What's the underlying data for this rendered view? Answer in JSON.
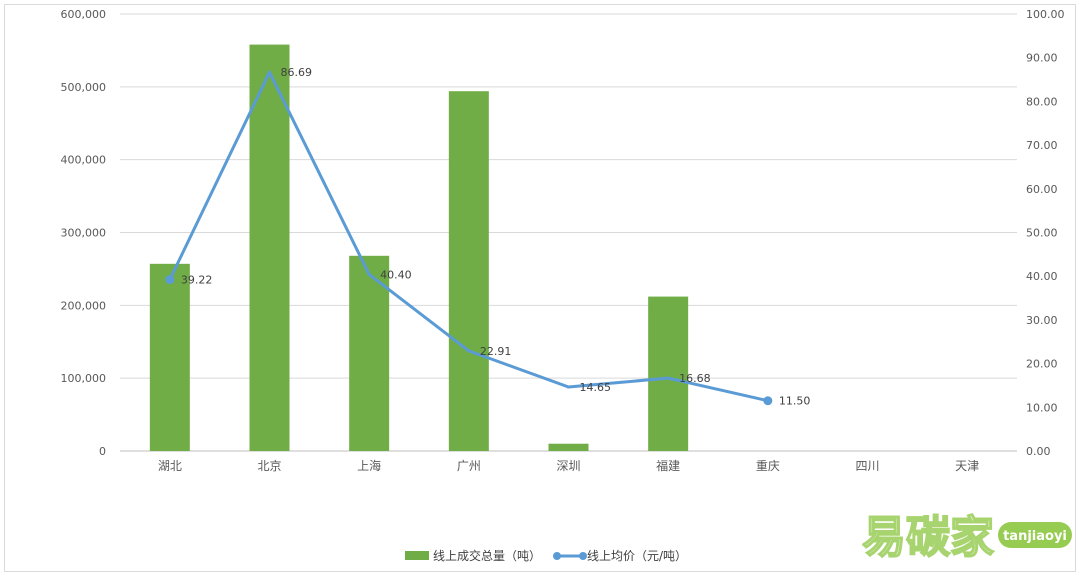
{
  "chart_data": {
    "type": "bar",
    "categories": [
      "湖北",
      "北京",
      "上海",
      "广州",
      "深圳",
      "福建",
      "重庆",
      "四川",
      "天津"
    ],
    "series": [
      {
        "name": "线上成交总量（吨）",
        "type": "bar",
        "axis": "left",
        "color": "#70AD47",
        "values": [
          257000,
          558000,
          268000,
          494000,
          10000,
          212000,
          null,
          null,
          null
        ]
      },
      {
        "name": "线上均价（元/吨）",
        "type": "line",
        "axis": "right",
        "color": "#5B9BD5",
        "values": [
          39.22,
          86.69,
          40.4,
          22.91,
          14.65,
          16.68,
          11.5,
          null,
          null
        ],
        "data_labels": [
          "39.22",
          "86.69",
          "40.40",
          "22.91",
          "14.65",
          "16.68",
          "11.50"
        ]
      }
    ],
    "y_left": {
      "ylim": [
        0,
        600000
      ],
      "ticks": [
        0,
        100000,
        200000,
        300000,
        400000,
        500000,
        600000
      ],
      "tick_labels": [
        "0",
        "100,000",
        "200,000",
        "300,000",
        "400,000",
        "500,000",
        "600,000"
      ]
    },
    "y_right": {
      "ylim": [
        0,
        100
      ],
      "ticks": [
        0,
        10,
        20,
        30,
        40,
        50,
        60,
        70,
        80,
        90,
        100
      ],
      "tick_labels": [
        "0.00",
        "10.00",
        "20.00",
        "30.00",
        "40.00",
        "50.00",
        "60.00",
        "70.00",
        "80.00",
        "90.00",
        "100.00"
      ]
    },
    "grid": true,
    "legend_position": "bottom",
    "title": "",
    "xlabel": "",
    "ylabel": ""
  },
  "watermark": {
    "brand": "易碳家",
    "domain": "tanjiaoyi",
    "color": "#8cc63f"
  }
}
